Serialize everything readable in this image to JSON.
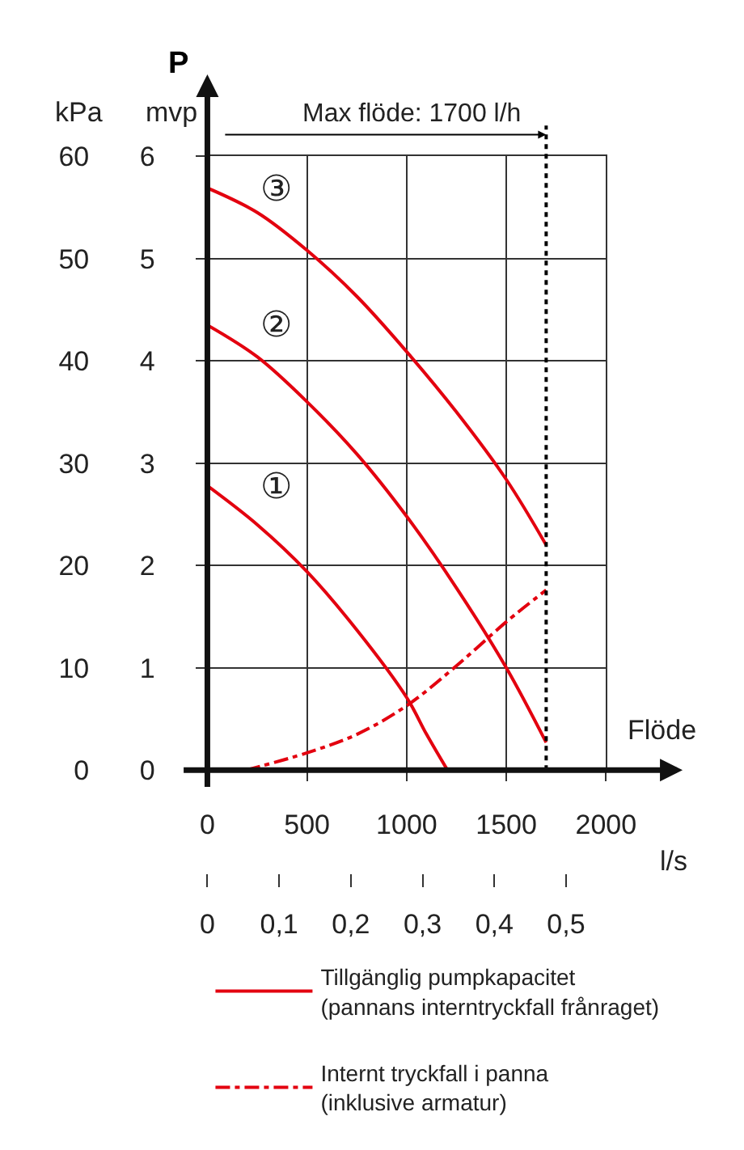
{
  "chart_data": {
    "type": "line",
    "xlabel": "Flöde",
    "ylabel": "mvp",
    "y2label": "kPa",
    "x2label": "l/s",
    "xlim": [
      0,
      2000
    ],
    "xticks": [
      0,
      500,
      1000,
      1500,
      2000
    ],
    "ylim": [
      0,
      6
    ],
    "yticks": [
      0,
      1,
      2,
      3,
      4,
      5,
      6
    ],
    "y2lim": [
      0,
      60
    ],
    "y2ticks": [
      0,
      10,
      20,
      30,
      40,
      50,
      60
    ],
    "x2lim": [
      0,
      0.5556
    ],
    "x2ticks": [
      0,
      {
        "value": 0.1,
        "label": "0,1"
      },
      {
        "value": 0.2,
        "label": "0,2"
      },
      {
        "value": 0.3,
        "label": "0,3"
      },
      {
        "value": 0.4,
        "label": "0,4"
      },
      {
        "value": 0.5,
        "label": "0,5"
      }
    ],
    "grid": true,
    "legend": "bottom",
    "marker": "none",
    "series": [
      {
        "name": "Tillgänglig pumpkapacitet\n(pannans interntryckfall frånraget)",
        "color": "#e3000f",
        "line_style": "solid",
        "x": [
          0,
          250,
          500,
          750,
          1000,
          1100,
          1205
        ],
        "values": [
          2.78,
          2.4,
          1.94,
          1.37,
          0.71,
          0.35,
          0
        ]
      },
      {
        "color": "#e3000f",
        "line_style": "solid",
        "x": [
          0,
          250,
          500,
          750,
          1000,
          1250,
          1500,
          1700
        ],
        "values": [
          4.35,
          4.04,
          3.6,
          3.09,
          2.48,
          1.78,
          1.0,
          0.27
        ]
      },
      {
        "color": "#e3000f",
        "line_style": "solid",
        "x": [
          0,
          250,
          500,
          750,
          1000,
          1250,
          1500,
          1700
        ],
        "values": [
          5.69,
          5.45,
          5.08,
          4.63,
          4.09,
          3.5,
          2.84,
          2.2
        ]
      },
      {
        "name": "Internt tryckfall i panna\n(inklusive armatur)",
        "color": "#e3000f",
        "line_style": "dashdot",
        "x": [
          192,
          500,
          750,
          1000,
          1250,
          1500,
          1700
        ],
        "values": [
          0,
          0.17,
          0.35,
          0.63,
          1.02,
          1.45,
          1.76
        ]
      }
    ],
    "ref_lines": [
      {
        "axis": "x",
        "value": 1700,
        "label": "Max flöde: 1700 l/h",
        "color": "#000000",
        "line_style": "dotted"
      }
    ],
    "annotations": [
      "P",
      "①",
      "②",
      "③"
    ]
  }
}
